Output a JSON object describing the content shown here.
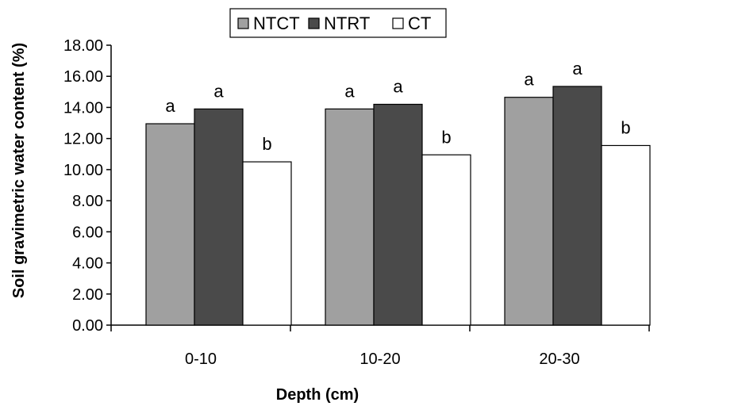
{
  "chart_data": {
    "type": "bar",
    "categories": [
      "0-10",
      "10-20",
      "20-30"
    ],
    "series": [
      {
        "name": "NTCT",
        "values": [
          12.95,
          13.9,
          14.65
        ],
        "color": "#a0a0a0",
        "labels": [
          "a",
          "a",
          "a"
        ]
      },
      {
        "name": "NTRT",
        "values": [
          13.9,
          14.2,
          15.35
        ],
        "color": "#4a4a4a",
        "labels": [
          "a",
          "a",
          "a"
        ]
      },
      {
        "name": "CT",
        "values": [
          10.5,
          10.95,
          11.55
        ],
        "color": "#ffffff",
        "labels": [
          "b",
          "b",
          "b"
        ]
      }
    ],
    "xlabel": "Depth (cm)",
    "ylabel": "Soil gravimetric water content (%)",
    "ylim": [
      0,
      18
    ],
    "yticks": [
      "0.00",
      "2.00",
      "4.00",
      "6.00",
      "8.00",
      "10.00",
      "12.00",
      "14.00",
      "16.00",
      "18.00"
    ],
    "grid": false,
    "legend": "top-center"
  }
}
